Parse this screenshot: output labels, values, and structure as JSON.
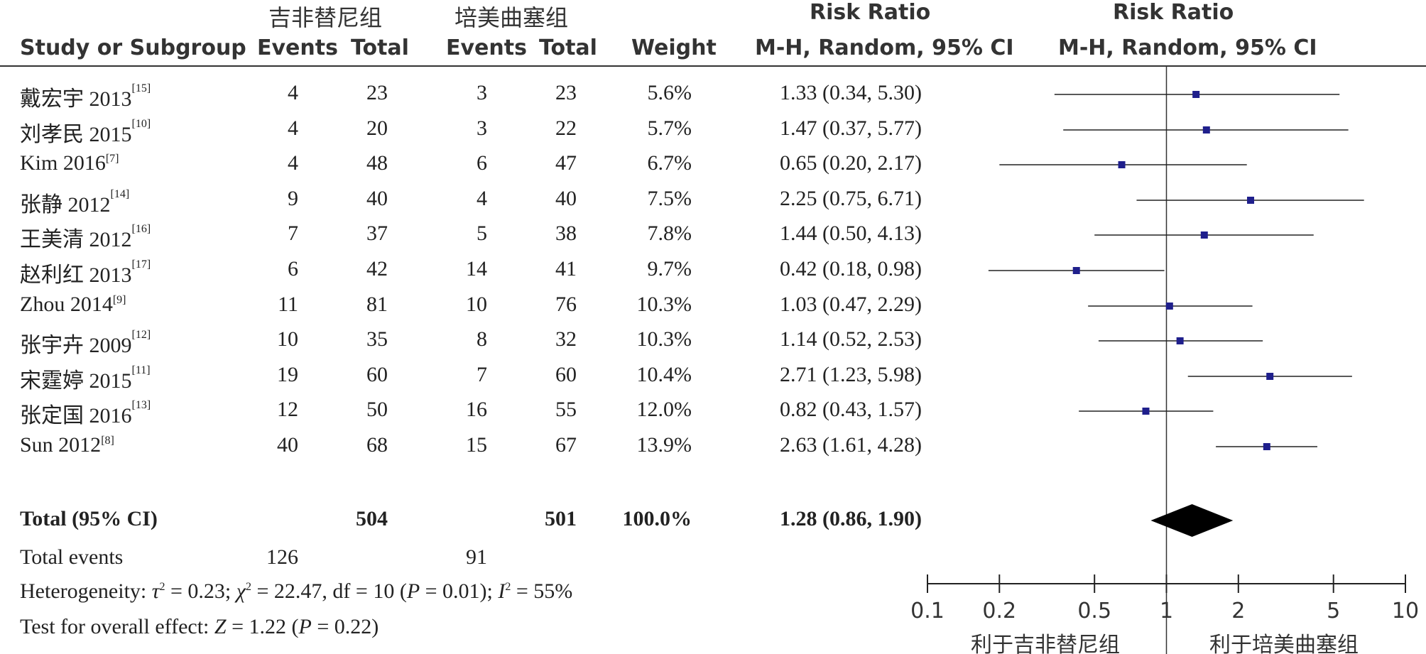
{
  "header": {
    "group1": "吉非替尼组",
    "group2": "培美曲塞组",
    "rr_title": "Risk Ratio",
    "rr_title_plot": "Risk Ratio",
    "study_label": "Study or Subgroup",
    "events1": "Events",
    "total1": "Total",
    "events2": "Events",
    "total2": "Total",
    "weight": "Weight",
    "method": "M-H, Random, 95% CI",
    "method_plot": "M-H, Random, 95% CI"
  },
  "studies": [
    {
      "name": "戴宏宇 2013",
      "ref": "[15]",
      "e1": "4",
      "t1": "23",
      "e2": "3",
      "t2": "23",
      "weight": "5.6%",
      "ci": "1.33 (0.34, 5.30)"
    },
    {
      "name": "刘孝民 2015",
      "ref": "[10]",
      "e1": "4",
      "t1": "20",
      "e2": "3",
      "t2": "22",
      "weight": "5.7%",
      "ci": "1.47 (0.37, 5.77)"
    },
    {
      "name": "Kim 2016",
      "ref": "[7]",
      "e1": "4",
      "t1": "48",
      "e2": "6",
      "t2": "47",
      "weight": "6.7%",
      "ci": "0.65 (0.20, 2.17)"
    },
    {
      "name": "张静 2012",
      "ref": "[14]",
      "e1": "9",
      "t1": "40",
      "e2": "4",
      "t2": "40",
      "weight": "7.5%",
      "ci": "2.25 (0.75, 6.71)"
    },
    {
      "name": "王美清 2012",
      "ref": "[16]",
      "e1": "7",
      "t1": "37",
      "e2": "5",
      "t2": "38",
      "weight": "7.8%",
      "ci": "1.44 (0.50, 4.13)"
    },
    {
      "name": "赵利红 2013",
      "ref": "[17]",
      "e1": "6",
      "t1": "42",
      "e2": "14",
      "t2": "41",
      "weight": "9.7%",
      "ci": "0.42 (0.18, 0.98)"
    },
    {
      "name": "Zhou 2014",
      "ref": "[9]",
      "e1": "11",
      "t1": "81",
      "e2": "10",
      "t2": "76",
      "weight": "10.3%",
      "ci": "1.03 (0.47, 2.29)"
    },
    {
      "name": "张宇卉 2009",
      "ref": "[12]",
      "e1": "10",
      "t1": "35",
      "e2": "8",
      "t2": "32",
      "weight": "10.3%",
      "ci": "1.14 (0.52, 2.53)"
    },
    {
      "name": "宋霆婷 2015",
      "ref": "[11]",
      "e1": "19",
      "t1": "60",
      "e2": "7",
      "t2": "60",
      "weight": "10.4%",
      "ci": "2.71 (1.23, 5.98)"
    },
    {
      "name": "张定国 2016",
      "ref": "[13]",
      "e1": "12",
      "t1": "50",
      "e2": "16",
      "t2": "55",
      "weight": "12.0%",
      "ci": "0.82 (0.43, 1.57)"
    },
    {
      "name": "Sun 2012",
      "ref": "[8]",
      "e1": "40",
      "t1": "68",
      "e2": "15",
      "t2": "67",
      "weight": "13.9%",
      "ci": "2.63 (1.61, 4.28)"
    }
  ],
  "total": {
    "label": "Total (95% CI)",
    "t1": "504",
    "t2": "501",
    "weight": "100.0%",
    "ci": "1.28 (0.86, 1.90)"
  },
  "events": {
    "label": "Total events",
    "e1": "126",
    "e2": "91"
  },
  "heterogeneity": {
    "label": "Heterogeneity:",
    "tau": "τ",
    "tau_sup": "2",
    "tau_val": " = 0.23; ",
    "chi": "χ",
    "chi_sup": "2",
    "chi_val": " = 22.47, df = 10 (",
    "p": "P",
    "p_val": " = 0.01); ",
    "i": "I",
    "i_sup": "2",
    "i_val": " = 55%"
  },
  "overall": {
    "label": "Test for overall effect: ",
    "z": "Z",
    "z_val": " = 1.22 (",
    "p": "P",
    "p_val": " = 0.22)"
  },
  "axis_labels": [
    "0.1",
    "0.2",
    "0.5",
    "1",
    "2",
    "5",
    "10"
  ],
  "favours": {
    "left": "利于吉非替尼组",
    "right": "利于培美曲塞组"
  },
  "chart_data": {
    "type": "forest",
    "scale": "log",
    "xlim": [
      0.1,
      10
    ],
    "ticks": [
      0.1,
      0.2,
      0.5,
      1,
      2,
      5,
      10
    ],
    "marker_color": "#1f1f8c",
    "points": [
      {
        "rr": 1.33,
        "lo": 0.34,
        "hi": 5.3
      },
      {
        "rr": 1.47,
        "lo": 0.37,
        "hi": 5.77
      },
      {
        "rr": 0.65,
        "lo": 0.2,
        "hi": 2.17
      },
      {
        "rr": 2.25,
        "lo": 0.75,
        "hi": 6.71
      },
      {
        "rr": 1.44,
        "lo": 0.5,
        "hi": 4.13
      },
      {
        "rr": 0.42,
        "lo": 0.18,
        "hi": 0.98
      },
      {
        "rr": 1.03,
        "lo": 0.47,
        "hi": 2.29
      },
      {
        "rr": 1.14,
        "lo": 0.52,
        "hi": 2.53
      },
      {
        "rr": 2.71,
        "lo": 1.23,
        "hi": 5.98
      },
      {
        "rr": 0.82,
        "lo": 0.43,
        "hi": 1.57
      },
      {
        "rr": 2.63,
        "lo": 1.61,
        "hi": 4.28
      }
    ],
    "pooled": {
      "rr": 1.28,
      "lo": 0.86,
      "hi": 1.9
    }
  }
}
